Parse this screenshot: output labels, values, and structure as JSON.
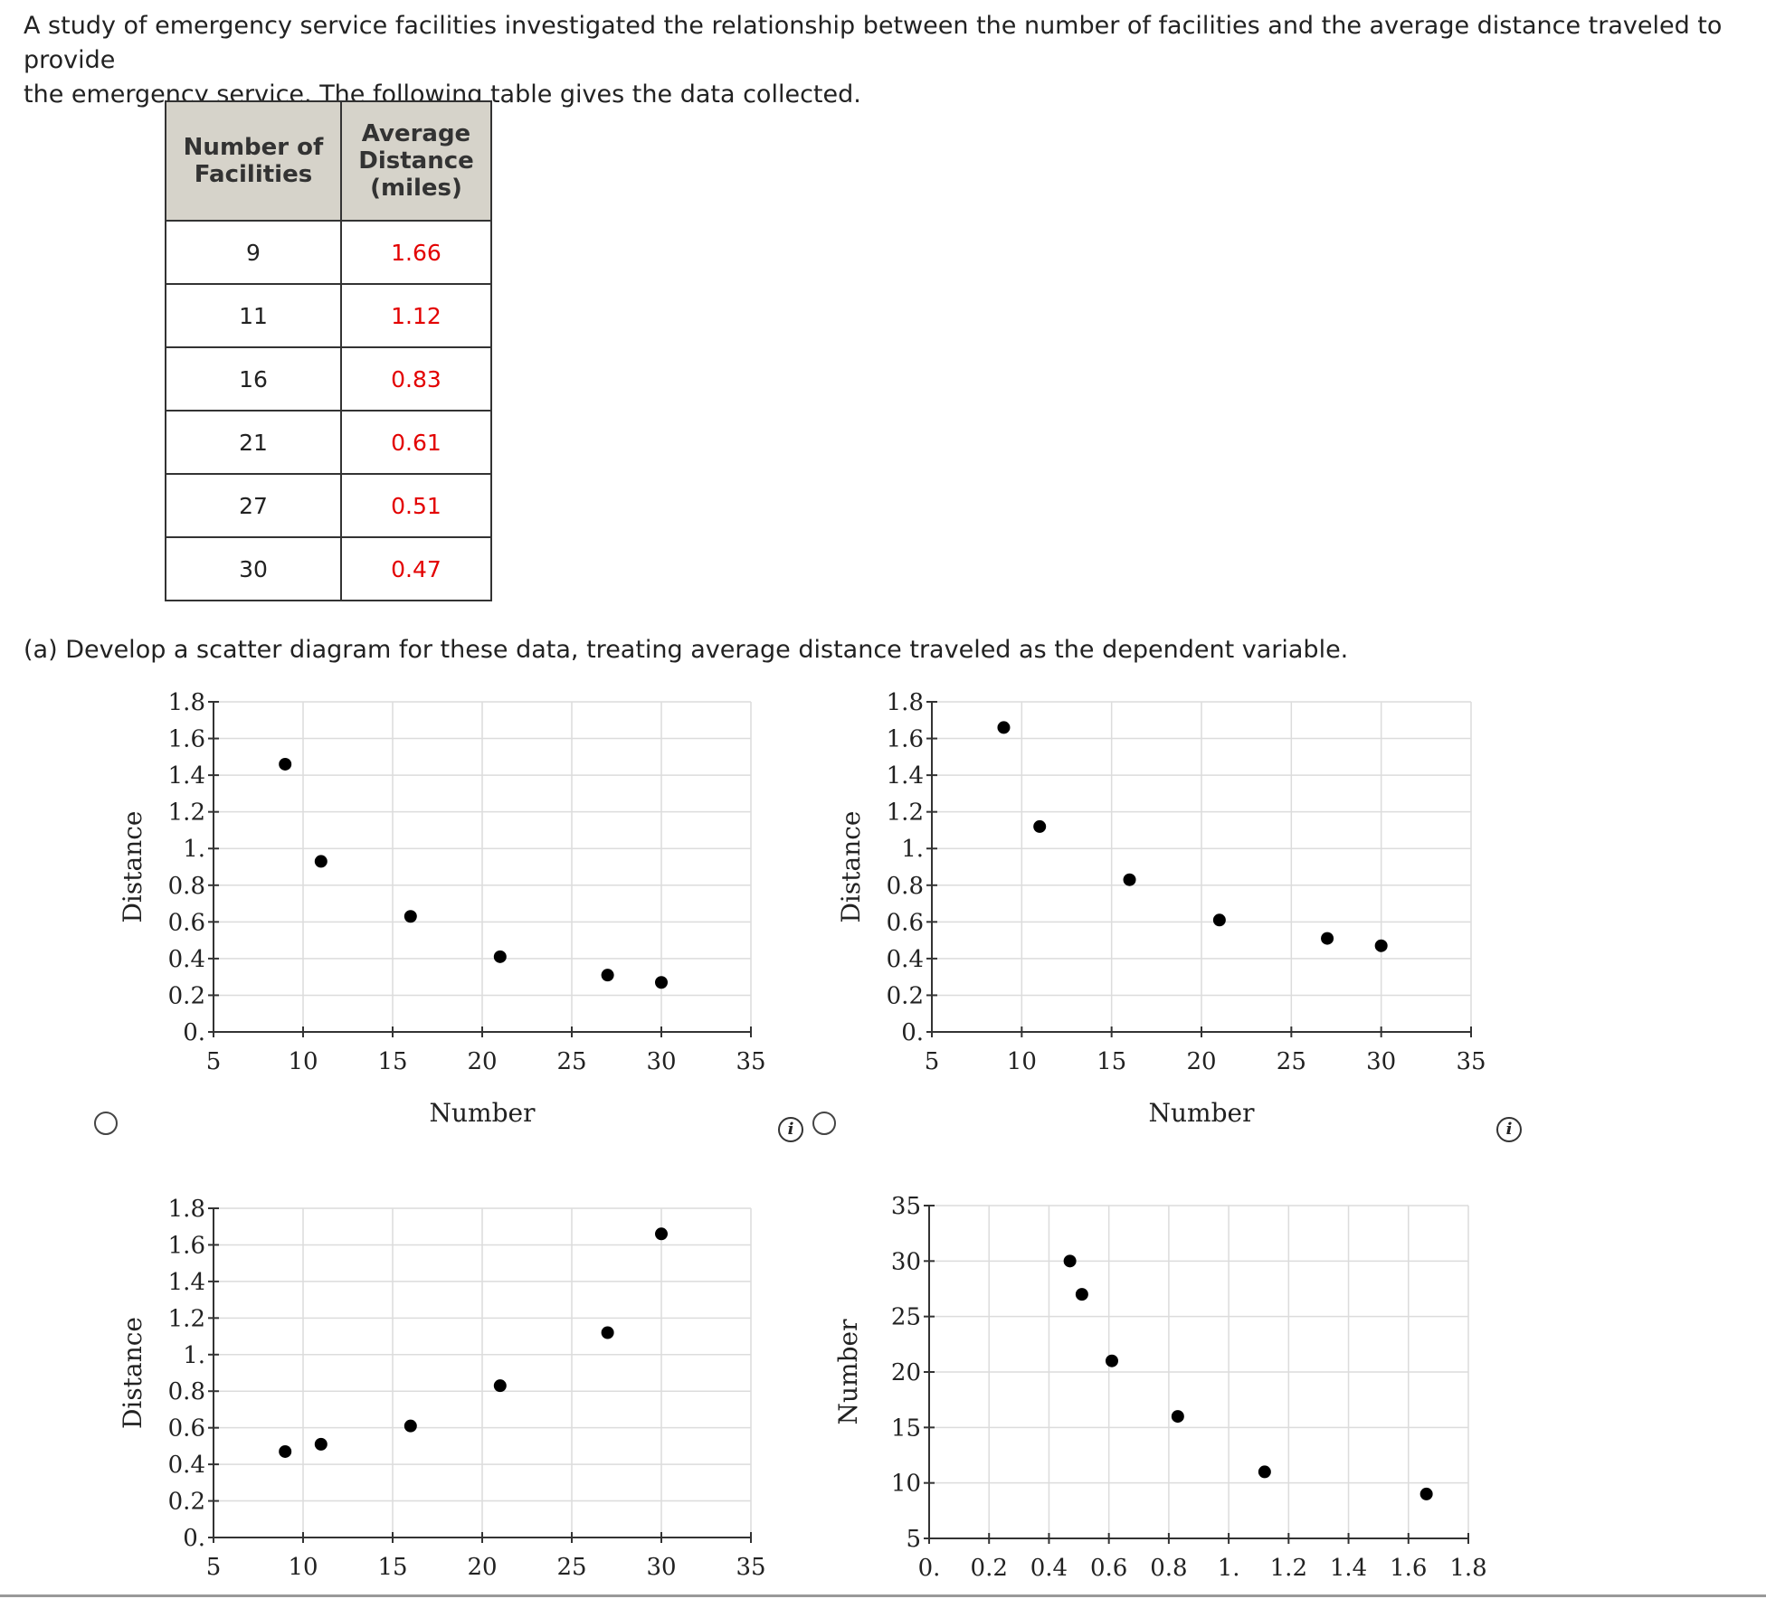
{
  "intro": {
    "line1": "A study of emergency service facilities investigated the relationship between the number of facilities and the average distance traveled to provide",
    "line2": "the emergency service. The following table gives the data collected."
  },
  "table": {
    "header_col1": [
      "Number of",
      "Facilities"
    ],
    "header_col2": [
      "Average",
      "Distance",
      "(miles)"
    ],
    "rows": [
      {
        "facilities": "9",
        "distance": "1.66"
      },
      {
        "facilities": "11",
        "distance": "1.12"
      },
      {
        "facilities": "16",
        "distance": "0.83"
      },
      {
        "facilities": "21",
        "distance": "0.61"
      },
      {
        "facilities": "27",
        "distance": "0.51"
      },
      {
        "facilities": "30",
        "distance": "0.47"
      }
    ],
    "value_color": "#e30000"
  },
  "question": {
    "part_a": "(a)   Develop a scatter diagram for these data, treating average distance traveled as the dependent variable."
  },
  "info_icon": "i",
  "chart_data": [
    {
      "type": "scatter",
      "option": 1,
      "xlabel": "Number",
      "ylabel": "Distance",
      "xlim": [
        5,
        35
      ],
      "ylim": [
        0,
        1.8
      ],
      "xticks": [
        "5",
        "10",
        "15",
        "20",
        "25",
        "30",
        "35"
      ],
      "yticks": [
        "0.",
        "0.2",
        "0.4",
        "0.6",
        "0.8",
        "1.",
        "1.2",
        "1.4",
        "1.6",
        "1.8"
      ],
      "grid": true,
      "points": [
        [
          9,
          1.46
        ],
        [
          11,
          0.93
        ],
        [
          16,
          0.63
        ],
        [
          21,
          0.41
        ],
        [
          27,
          0.31
        ],
        [
          30,
          0.27
        ]
      ]
    },
    {
      "type": "scatter",
      "option": 2,
      "xlabel": "Number",
      "ylabel": "Distance",
      "xlim": [
        5,
        35
      ],
      "ylim": [
        0,
        1.8
      ],
      "xticks": [
        "5",
        "10",
        "15",
        "20",
        "25",
        "30",
        "35"
      ],
      "yticks": [
        "0.",
        "0.2",
        "0.4",
        "0.6",
        "0.8",
        "1.",
        "1.2",
        "1.4",
        "1.6",
        "1.8"
      ],
      "grid": true,
      "points": [
        [
          9,
          1.66
        ],
        [
          11,
          1.12
        ],
        [
          16,
          0.83
        ],
        [
          21,
          0.61
        ],
        [
          27,
          0.51
        ],
        [
          30,
          0.47
        ]
      ]
    },
    {
      "type": "scatter",
      "option": 3,
      "xlabel": "",
      "ylabel": "Distance",
      "xlim": [
        5,
        35
      ],
      "ylim": [
        0,
        1.8
      ],
      "xticks": [
        "5",
        "10",
        "15",
        "20",
        "25",
        "30",
        "35"
      ],
      "yticks": [
        "0.",
        "0.2",
        "0.4",
        "0.6",
        "0.8",
        "1.",
        "1.2",
        "1.4",
        "1.6",
        "1.8"
      ],
      "grid": true,
      "points": [
        [
          9,
          0.47
        ],
        [
          11,
          0.51
        ],
        [
          16,
          0.61
        ],
        [
          21,
          0.83
        ],
        [
          27,
          1.12
        ],
        [
          30,
          1.66
        ]
      ]
    },
    {
      "type": "scatter",
      "option": 4,
      "xlabel": "",
      "ylabel": "Number",
      "xlim": [
        0,
        1.8
      ],
      "ylim": [
        5,
        35
      ],
      "xticks": [
        "0.",
        "0.2",
        "0.4",
        "0.6",
        "0.8",
        "1.",
        "1.2",
        "1.4",
        "1.6",
        "1.8"
      ],
      "yticks": [
        "5",
        "10",
        "15",
        "20",
        "25",
        "30",
        "35"
      ],
      "grid": true,
      "points": [
        [
          0.47,
          30
        ],
        [
          0.51,
          27
        ],
        [
          0.61,
          21
        ],
        [
          0.83,
          16
        ],
        [
          1.12,
          11
        ],
        [
          1.66,
          9
        ]
      ]
    }
  ]
}
